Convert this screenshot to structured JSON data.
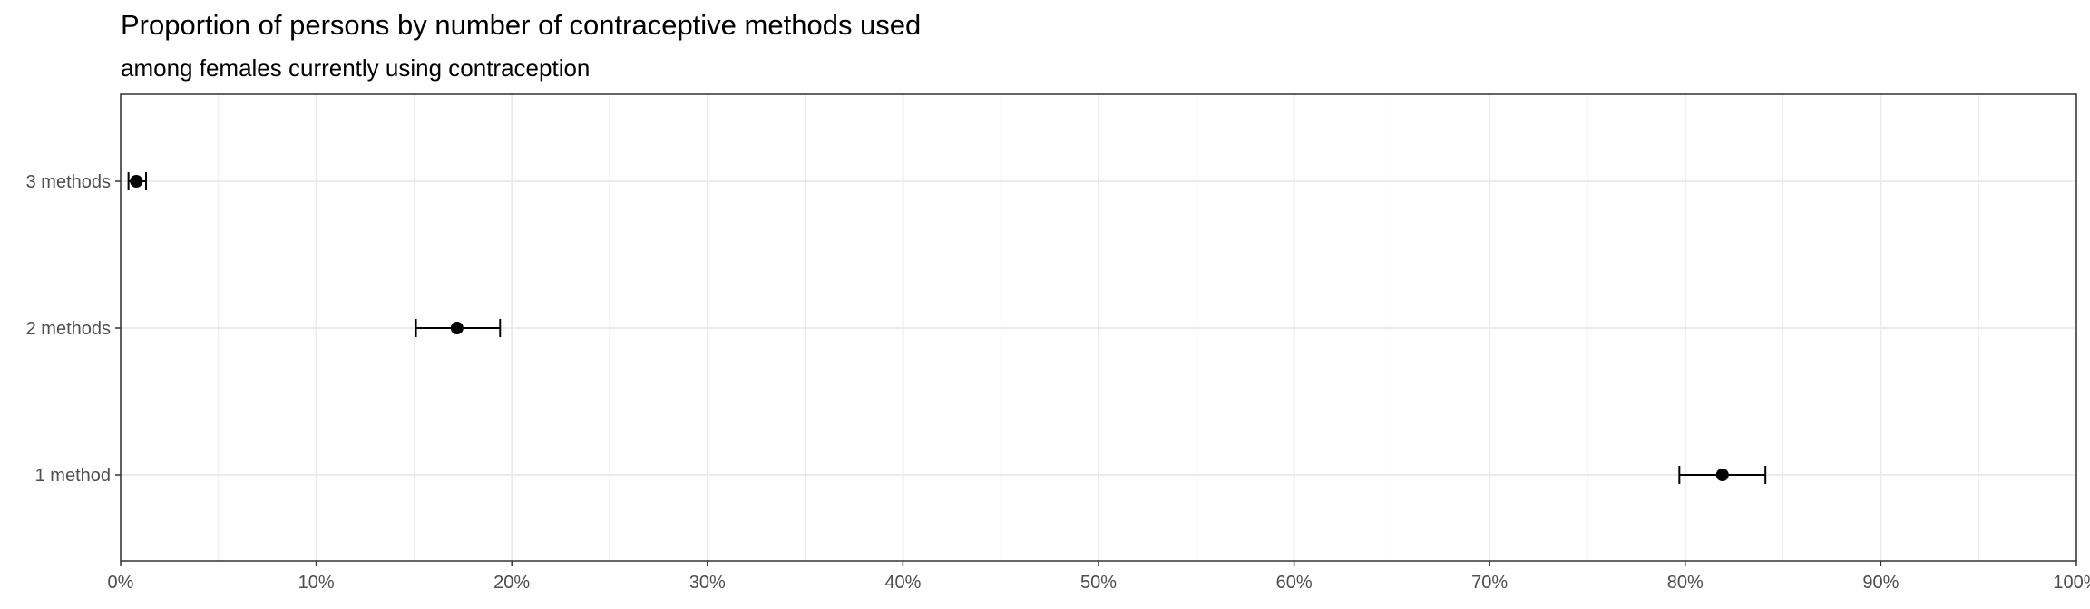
{
  "chart_data": {
    "type": "scatter",
    "title": "Proportion of persons by number of contraceptive methods used",
    "subtitle": "among females currently using contraception",
    "xlabel": "",
    "ylabel": "",
    "xlim": [
      0,
      100
    ],
    "x_ticks": [
      0,
      10,
      20,
      30,
      40,
      50,
      60,
      70,
      80,
      90,
      100
    ],
    "x_tick_labels": [
      "0%",
      "10%",
      "20%",
      "30%",
      "40%",
      "50%",
      "60%",
      "70%",
      "80%",
      "90%",
      "100%"
    ],
    "categories": [
      "3 methods",
      "2 methods",
      "1 method"
    ],
    "points": [
      {
        "category": "3 methods",
        "estimate": 0.8,
        "lower": 0.4,
        "upper": 1.3
      },
      {
        "category": "2 methods",
        "estimate": 17.2,
        "lower": 15.1,
        "upper": 19.4
      },
      {
        "category": "1 method",
        "estimate": 81.9,
        "lower": 79.7,
        "upper": 84.1
      }
    ],
    "grid": true,
    "legend": "none"
  },
  "colors": {
    "point": "#000000",
    "errorbar": "#000000",
    "grid": "#ebebeb",
    "panel_border": "#333333",
    "tick_text": "#4d4d4d"
  }
}
